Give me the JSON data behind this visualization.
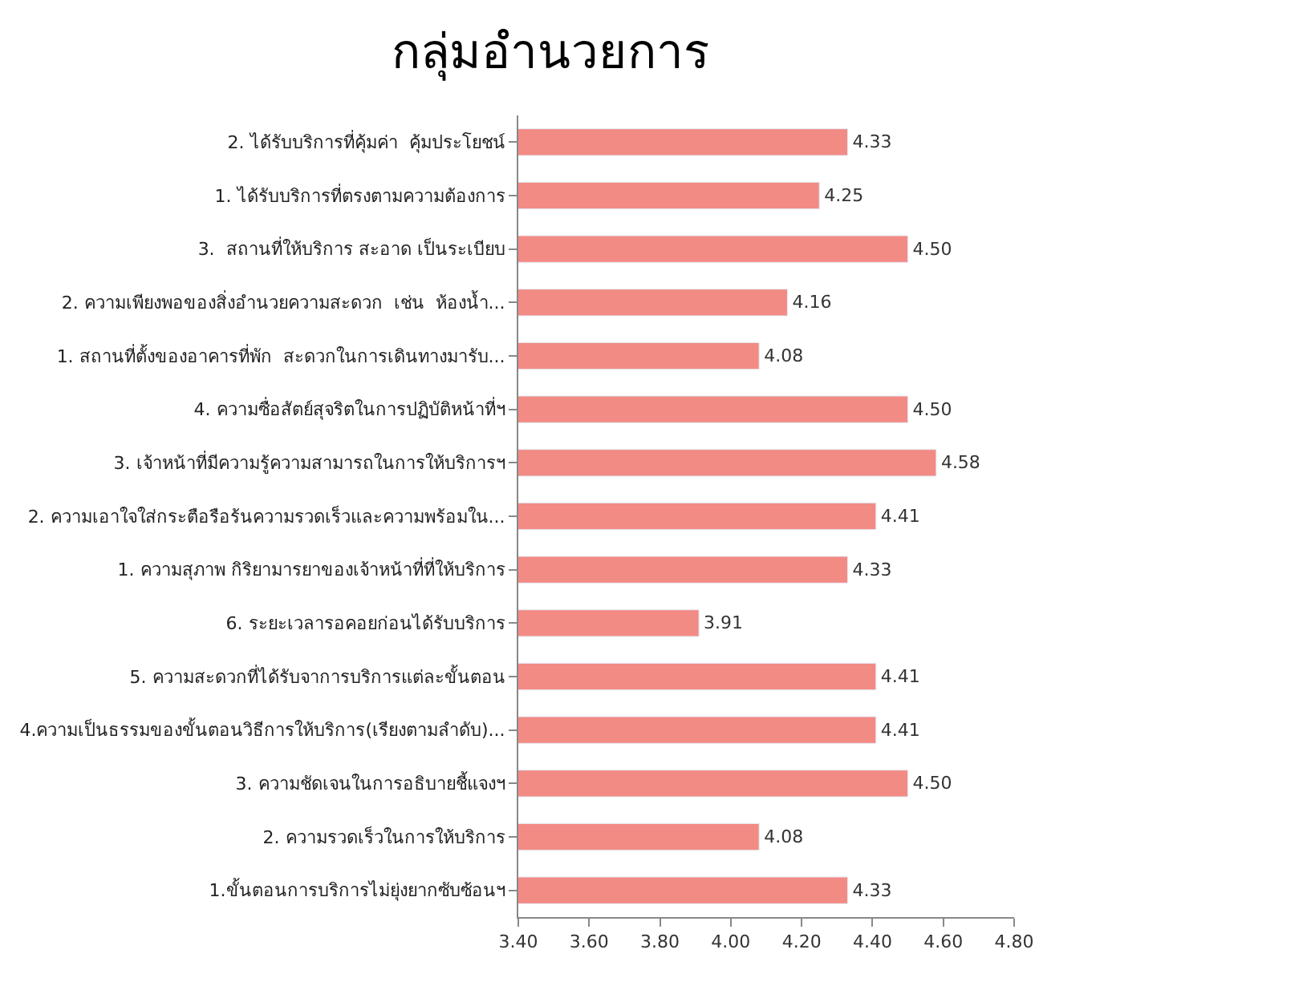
{
  "chart_data": {
    "type": "bar",
    "orientation": "horizontal",
    "title": "กลุ่มอำนวยการ",
    "categories": [
      "2. ได้รับบริการที่คุ้มค่า  คุ้มประโยชน์",
      "1. ได้รับบริการที่ตรงตามความต้องการ",
      "3.  สถานที่ให้บริการ สะอาด เป็นระเบียบ",
      "2. ความเพียงพอของสิ่งอำนวยความสะดวก  เช่น  ห้องน้ำ...",
      "1. สถานที่ตั้งของอาคารที่พัก  สะดวกในการเดินทางมารับ...",
      "4. ความซื่อสัตย์สุจริตในการปฏิบัติหน้าที่ฯ",
      "3. เจ้าหน้าที่มีความรู้ความสามารถในการให้บริการฯ",
      "2. ความเอาใจใส่กระตือรือร้นความรวดเร็วและความพร้อมใน...",
      "1. ความสุภาพ กิริยามารยาของเจ้าหน้าที่ที่ให้บริการ",
      "6. ระยะเวลารอคอยก่อนได้รับบริการ",
      "5. ความสะดวกที่ได้รับจาการบริการแต่ละขั้นตอน",
      "4.ความเป็นธรรมของขั้นตอนวิธีการให้บริการ(เรียงตามลำดับ)...",
      "3. ความชัดเจนในการอธิบายชี้แจงฯ",
      "2. ความรวดเร็วในการให้บริการ",
      "1.ขั้นตอนการบริการไม่ยุ่งยากซับซ้อนฯ"
    ],
    "values": [
      4.33,
      4.25,
      4.5,
      4.16,
      4.08,
      4.5,
      4.58,
      4.41,
      4.33,
      3.91,
      4.41,
      4.41,
      4.5,
      4.08,
      4.33
    ],
    "value_labels": [
      "4.33",
      "4.25",
      "4.50",
      "4.16",
      "4.08",
      "4.50",
      "4.58",
      "4.41",
      "4.33",
      "3.91",
      "4.41",
      "4.41",
      "4.50",
      "4.08",
      "4.33"
    ],
    "color": "#f28b84",
    "xlim": [
      3.4,
      4.8
    ],
    "xticks": [
      {
        "value": 3.4,
        "label": "3.40"
      },
      {
        "value": 3.6,
        "label": "3.60"
      },
      {
        "value": 3.8,
        "label": "3.80"
      },
      {
        "value": 4.0,
        "label": "4.00"
      },
      {
        "value": 4.2,
        "label": "4.20"
      },
      {
        "value": 4.4,
        "label": "4.40"
      },
      {
        "value": 4.6,
        "label": "4.60"
      },
      {
        "value": 4.8,
        "label": "4.80"
      }
    ],
    "legend": false
  }
}
